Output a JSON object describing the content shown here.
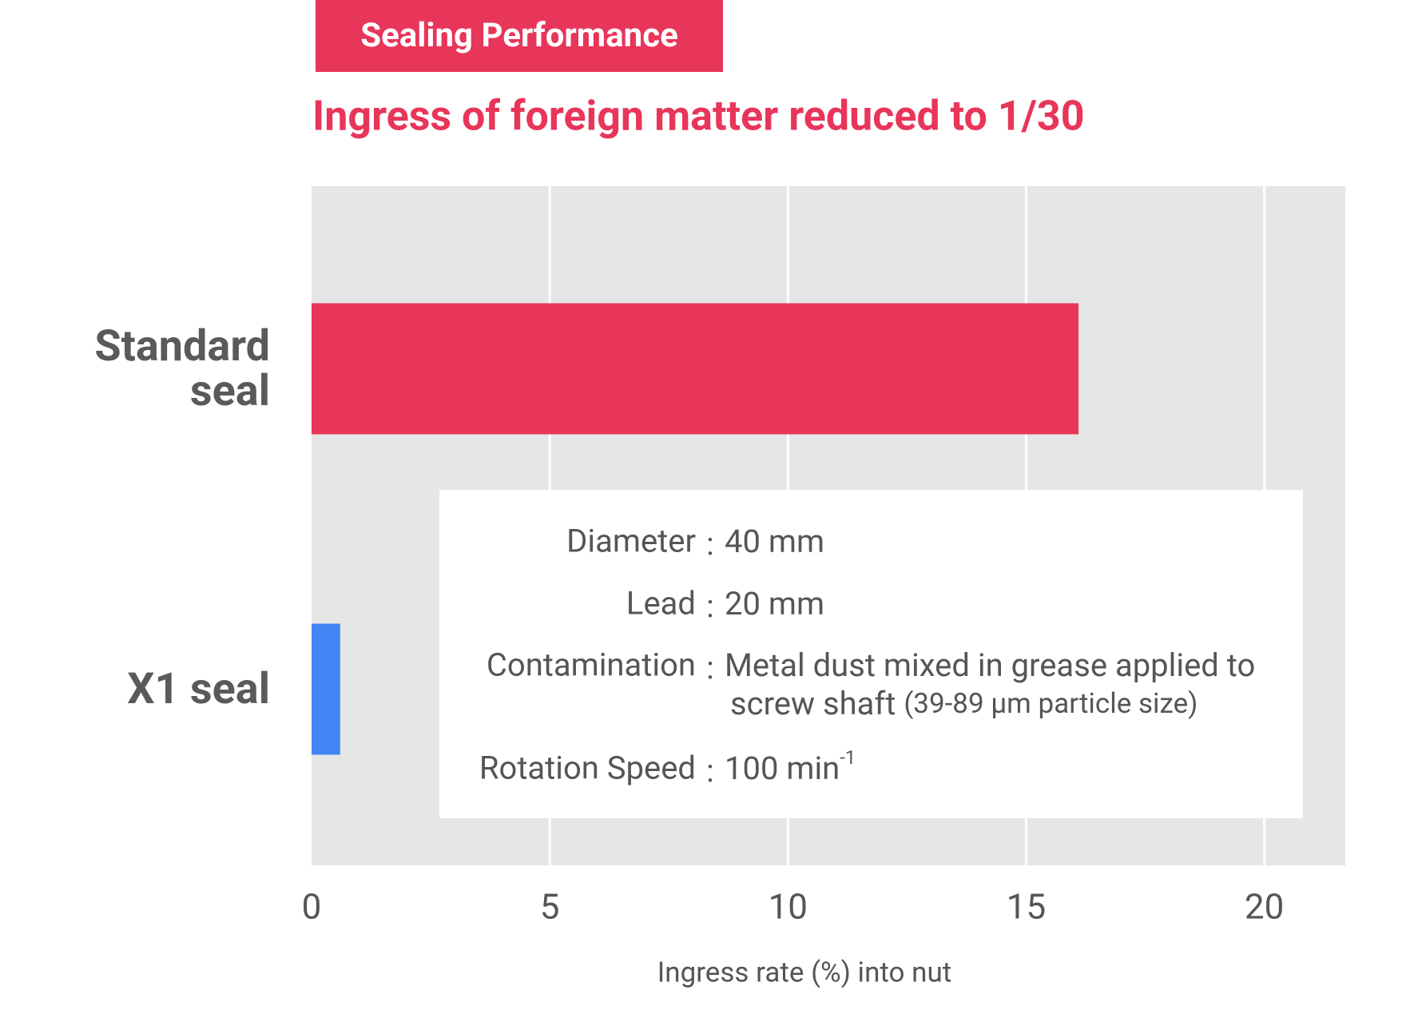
{
  "chart_data": {
    "type": "hbar",
    "badge": "Sealing Performance",
    "title": "Ingress of foreign matter reduced to 1/30",
    "x_label": "Ingress rate (%) into nut",
    "categories": [
      "Standard seal",
      "X1 seal"
    ],
    "values": [
      16.1,
      0.6
    ],
    "colors": [
      "#e8355a",
      "#4285f4"
    ],
    "xlim": [
      0,
      21.7
    ],
    "xticks": [
      0,
      5,
      10,
      15,
      20
    ],
    "grid": true,
    "conditions": {
      "separator": ":",
      "rows": [
        {
          "label": "Diameter",
          "value": "40 mm"
        },
        {
          "label": "Lead",
          "value": "20 mm"
        },
        {
          "label": "Contamination",
          "value": "Metal dust mixed in grease applied to",
          "value_cont": "screw shaft",
          "value_note": "(39-89 µm particle size)"
        },
        {
          "label": "Rotation Speed",
          "value": "100 min",
          "superscript": "-1"
        }
      ]
    }
  }
}
